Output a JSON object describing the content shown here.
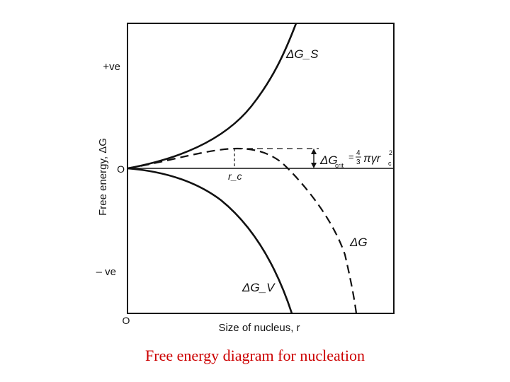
{
  "diagram": {
    "y_axis_label": "Free energy, ΔG",
    "y_tick_positive": "+ve",
    "y_tick_zero": "O",
    "y_tick_negative": "– ve",
    "x_origin_label": "O",
    "x_axis_label": "Size of nucleus, r",
    "curves": {
      "surface": "ΔG_S",
      "volume": "ΔG_V",
      "total": "ΔG"
    },
    "critical_radius_label": "r_c",
    "barrier_label": "ΔG_crit = 4/3 πγr_c²",
    "barrier_label_parts": {
      "delta_g": "ΔG",
      "sub": "crit",
      "eq": "=",
      "num": "4",
      "den": "3",
      "pi_gamma_r": "πγr",
      "sup": "2",
      "sub_c": "c"
    }
  },
  "caption": {
    "text": "Free energy diagram for nucleation",
    "color": "#cc0000"
  }
}
